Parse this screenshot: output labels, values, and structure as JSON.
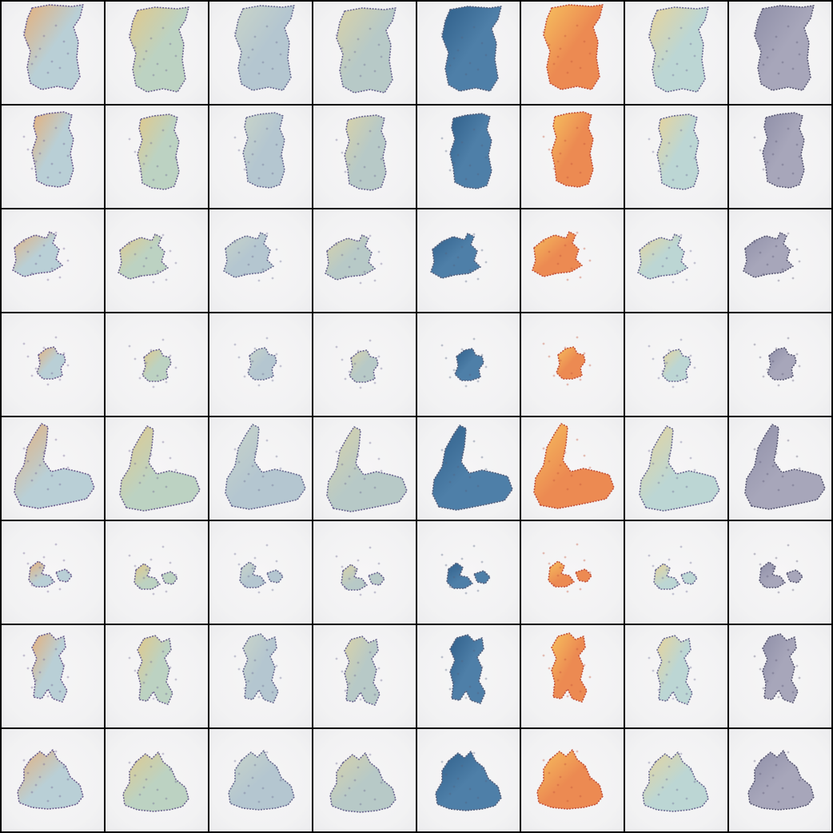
{
  "grid": {
    "rows": 8,
    "columns": 8,
    "background_color": "#f3f3f4",
    "separator_color": "#000000",
    "column_palettes": [
      {
        "fill": "#b9cfd6",
        "accent": "#e6b07a",
        "edge": "#6d5f8f"
      },
      {
        "fill": "#bcd2c2",
        "accent": "#e2c98a",
        "edge": "#6e6690"
      },
      {
        "fill": "#b4c6d0",
        "accent": "#c9d4c8",
        "edge": "#6a6c92"
      },
      {
        "fill": "#b7c9c7",
        "accent": "#d9d2a8",
        "edge": "#6a6690"
      },
      {
        "fill": "#4e7fa8",
        "accent": "#2f5f8a",
        "edge": "#54607e"
      },
      {
        "fill": "#ec8a52",
        "accent": "#f6c05e",
        "edge": "#c4523a"
      },
      {
        "fill": "#bcd6d4",
        "accent": "#e8d49a",
        "edge": "#6b6a92"
      },
      {
        "fill": "#a7a6ba",
        "accent": "#8f8fa8",
        "edge": "#5b5a76"
      }
    ],
    "rows_content": [
      {
        "shape": "tall-block"
      },
      {
        "shape": "tall-narrow"
      },
      {
        "shape": "small-cluster"
      },
      {
        "shape": "tiny-blob"
      },
      {
        "shape": "L-shape"
      },
      {
        "shape": "fragments"
      },
      {
        "shape": "vertical-figure"
      },
      {
        "shape": "mound"
      }
    ]
  }
}
